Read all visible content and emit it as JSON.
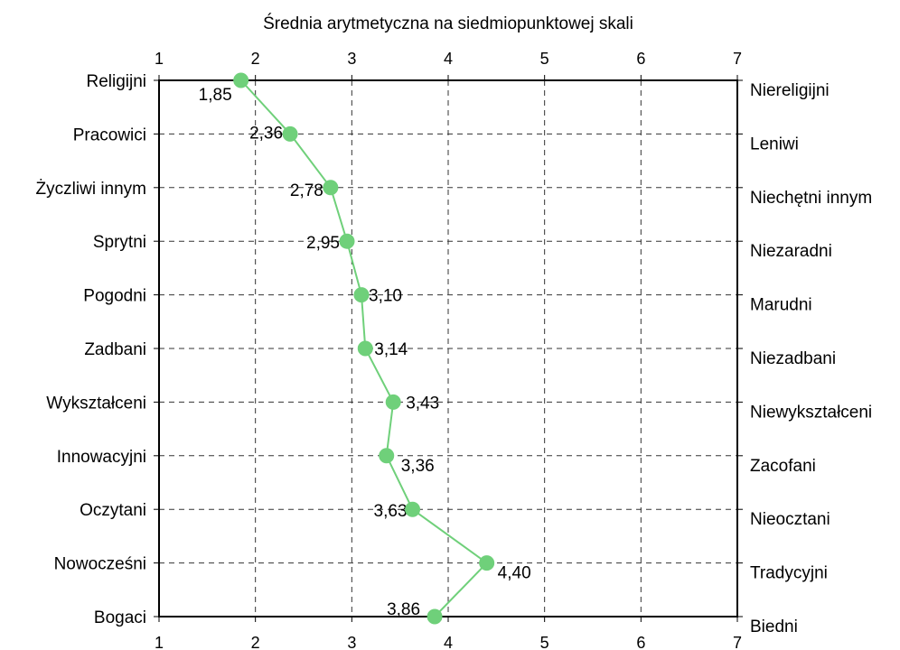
{
  "chart_data": {
    "type": "line",
    "title": "Średnia arytmetyczna na siedmiopunktowej skali",
    "xlim": [
      1,
      7
    ],
    "x_ticks": [
      "1",
      "2",
      "3",
      "4",
      "5",
      "6",
      "7"
    ],
    "grid": true,
    "left_labels": [
      "Religijni",
      "Pracowici",
      "Życzliwi innym",
      "Sprytni",
      "Pogodni",
      "Zadbani",
      "Wykształceni",
      "Innowacyjni",
      "Oczytani",
      "Nowocześni",
      "Bogaci"
    ],
    "right_labels": [
      "Niereligijni",
      "Leniwi",
      "Niechętni innym",
      "Niezaradni",
      "Marudni",
      "Niezadbani",
      "Niewykształceni",
      "Zacofani",
      "Nieocztani",
      "Tradycyjni",
      "Biedni"
    ],
    "values": [
      1.85,
      2.36,
      2.78,
      2.95,
      3.1,
      3.14,
      3.43,
      3.36,
      3.63,
      4.4,
      3.86
    ],
    "value_labels": [
      "1,85",
      "2,36",
      "2,78",
      "2,95",
      "3,10",
      "3,14",
      "3,43",
      "3,36",
      "3,63",
      "4,40",
      "3,86"
    ],
    "series_color": "#6fd07a"
  }
}
